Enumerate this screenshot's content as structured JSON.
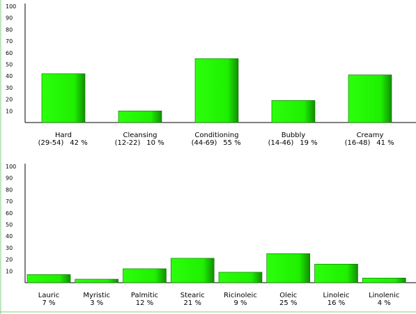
{
  "colors": {
    "bar_fill": "#22ff00",
    "bar_shadow": "#0f8f00",
    "axis": "#000000",
    "frame": "#7fcf7f"
  },
  "chart_data": [
    {
      "type": "bar",
      "title": "",
      "xlabel": "",
      "ylabel": "",
      "ylim": [
        0,
        100
      ],
      "yticks": [
        10,
        20,
        30,
        40,
        50,
        60,
        70,
        80,
        90,
        100
      ],
      "grid": false,
      "categories": [
        "Hard",
        "Cleansing",
        "Conditioning",
        "Bubbly",
        "Creamy"
      ],
      "ranges": [
        "(29-54)",
        "(12-22)",
        "(44-69)",
        "(14-46)",
        "(16-48)"
      ],
      "values": [
        42,
        10,
        55,
        19,
        41
      ],
      "value_labels": [
        "42 %",
        "10 %",
        "55 %",
        "19 %",
        "41 %"
      ]
    },
    {
      "type": "bar",
      "title": "",
      "xlabel": "",
      "ylabel": "",
      "ylim": [
        0,
        100
      ],
      "yticks": [
        10,
        20,
        30,
        40,
        50,
        60,
        70,
        80,
        90,
        100
      ],
      "grid": false,
      "categories": [
        "Lauric",
        "Myristic",
        "Palmitic",
        "Stearic",
        "Ricinoleic",
        "Oleic",
        "Linoleic",
        "Linolenic"
      ],
      "values": [
        7,
        3,
        12,
        21,
        9,
        25,
        16,
        4
      ],
      "value_labels": [
        "7 %",
        "3 %",
        "12 %",
        "21 %",
        "9 %",
        "25 %",
        "16 %",
        "4 %"
      ]
    }
  ]
}
